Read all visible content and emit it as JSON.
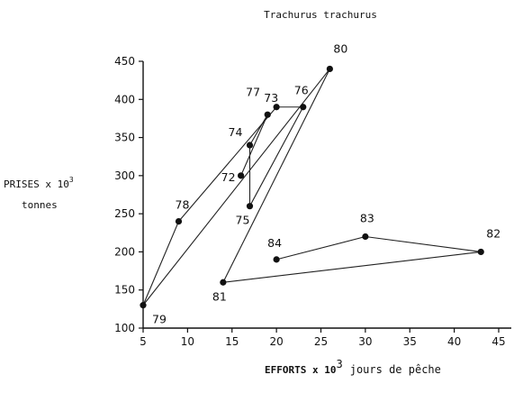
{
  "chart_data": {
    "type": "scatter",
    "title": "Trachurus trachurus",
    "ylabel": {
      "line1": "PRISES x 10",
      "exp": "3",
      "line2": "tonnes"
    },
    "xlabel": {
      "bold": "EFFORTS x 10",
      "exp": "3",
      "rest": "jours de pêche"
    },
    "xlim": [
      5,
      45
    ],
    "ylim": [
      100,
      450
    ],
    "xticks": [
      "5",
      "10",
      "15",
      "20",
      "25",
      "30",
      "35",
      "40",
      "45"
    ],
    "yticks": [
      "100",
      "150",
      "200",
      "250",
      "300",
      "350",
      "400",
      "450"
    ],
    "points": [
      {
        "label": "72",
        "x": 16,
        "y": 300
      },
      {
        "label": "73",
        "x": 19,
        "y": 380
      },
      {
        "label": "74",
        "x": 17,
        "y": 340
      },
      {
        "label": "75",
        "x": 17,
        "y": 260
      },
      {
        "label": "76",
        "x": 23,
        "y": 390
      },
      {
        "label": "77",
        "x": 20,
        "y": 390
      },
      {
        "label": "78",
        "x": 9,
        "y": 240
      },
      {
        "label": "79",
        "x": 5,
        "y": 130
      },
      {
        "label": "80",
        "x": 26,
        "y": 440
      },
      {
        "label": "81",
        "x": 14,
        "y": 160
      },
      {
        "label": "82",
        "x": 43,
        "y": 200
      },
      {
        "label": "83",
        "x": 30,
        "y": 220
      },
      {
        "label": "84",
        "x": 20,
        "y": 190
      }
    ],
    "path_order": [
      "72",
      "73",
      "74",
      "75",
      "76",
      "77",
      "78",
      "79",
      "80",
      "81",
      "82",
      "83",
      "84"
    ]
  }
}
